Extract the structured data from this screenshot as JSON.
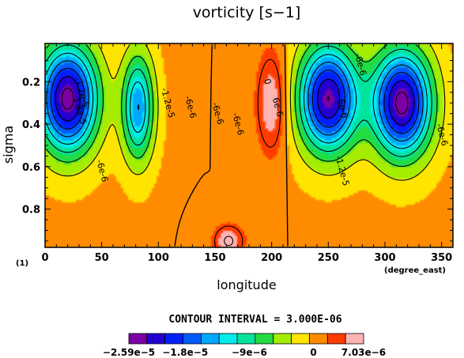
{
  "chart_data": {
    "type": "heatmap",
    "title": "vorticity [s−1]",
    "xlabel": "longitude",
    "ylabel": "sigma",
    "xunit": "(degree_east)",
    "yunit": "(1)",
    "xlim": [
      0,
      360
    ],
    "ylim": [
      0.98,
      0.02
    ],
    "y_inverted": true,
    "x_ticks": [
      0,
      50,
      100,
      150,
      200,
      250,
      300,
      350
    ],
    "y_ticks": [
      0.2,
      0.4,
      0.6,
      0.8
    ],
    "y_tick_labels": [
      "0.2",
      "0.4",
      "0.6",
      "0.8"
    ],
    "contour_interval_text": "CONTOUR INTERVAL = 3.000E-06",
    "contour_interval": 3e-06,
    "features": [
      {
        "lon": 20,
        "sigma": 0.28,
        "value": -2.5e-05
      },
      {
        "lon": 82,
        "sigma": 0.32,
        "value": -1.5e-05
      },
      {
        "lon": 200,
        "sigma": 0.3,
        "value": 6.5e-06
      },
      {
        "lon": 162,
        "sigma": 0.95,
        "value": 6.5e-06
      },
      {
        "lon": 250,
        "sigma": 0.28,
        "value": -2.4e-05
      },
      {
        "lon": 315,
        "sigma": 0.3,
        "value": -2.5e-05
      }
    ],
    "contour_labels": [
      {
        "text": "-1.2e-5",
        "lon": 32,
        "sigma": 0.25
      },
      {
        "text": "-1.8e-5",
        "lon": 30,
        "sigma": 0.33
      },
      {
        "text": "-6e-6",
        "lon": 50,
        "sigma": 0.62
      },
      {
        "text": "-1.2e-5",
        "lon": 108,
        "sigma": 0.3
      },
      {
        "text": "-6e-6",
        "lon": 128,
        "sigma": 0.32
      },
      {
        "text": "-6e-6",
        "lon": 152,
        "sigma": 0.35
      },
      {
        "text": "-6e-6",
        "lon": 170,
        "sigma": 0.4
      },
      {
        "text": "0",
        "lon": 196,
        "sigma": 0.2
      },
      {
        "text": "6e-6",
        "lon": 205,
        "sigma": 0.32
      },
      {
        "text": "-6e-6",
        "lon": 262,
        "sigma": 0.32
      },
      {
        "text": "-1.2e-5",
        "lon": 262,
        "sigma": 0.62
      },
      {
        "text": "-6e-6",
        "lon": 278,
        "sigma": 0.12
      },
      {
        "text": "-6e-6",
        "lon": 350,
        "sigma": 0.45
      }
    ],
    "colorbar": {
      "colors": [
        "#7c00a4",
        "#2400d0",
        "#0020ff",
        "#005cff",
        "#00a8ff",
        "#00ecec",
        "#00e49a",
        "#22dc44",
        "#a4ec00",
        "#ffe400",
        "#ff8c00",
        "#ff3c00",
        "#ffb4b4"
      ],
      "tick_labels": [
        "−2.59e−5",
        "−1.8e−5",
        "−9e−6",
        "0",
        "7.03e−6"
      ],
      "tick_values": [
        -2.59e-05,
        -1.8e-05,
        -9e-06,
        0,
        7.03e-06
      ]
    }
  }
}
